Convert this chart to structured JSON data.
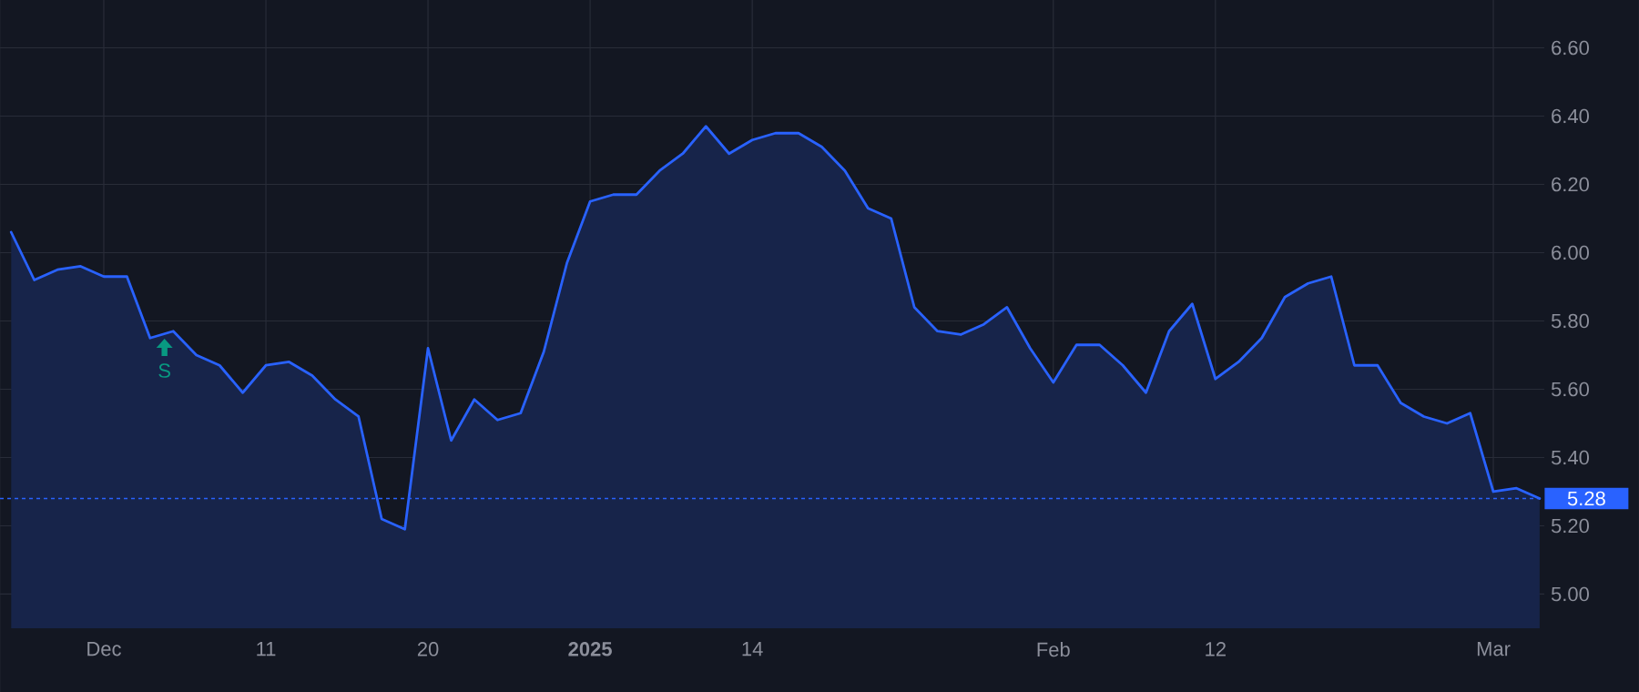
{
  "chart_data": {
    "type": "area",
    "categories": [
      null,
      null,
      null,
      null,
      "Dec",
      null,
      null,
      null,
      null,
      null,
      null,
      "11",
      null,
      null,
      null,
      null,
      null,
      null,
      "20",
      null,
      null,
      null,
      null,
      null,
      null,
      "**2025**",
      null,
      null,
      null,
      null,
      null,
      null,
      "14",
      null,
      null,
      null,
      null,
      null,
      null,
      null,
      null,
      null,
      null,
      null,
      null,
      "Feb",
      null,
      null,
      null,
      null,
      null,
      null,
      "12",
      null,
      null,
      null,
      null,
      null,
      null,
      null,
      null,
      null,
      null,
      null,
      "Mar",
      null,
      null
    ],
    "values": [
      6.06,
      5.92,
      5.95,
      5.96,
      5.93,
      5.93,
      5.75,
      5.77,
      5.7,
      5.67,
      5.59,
      5.67,
      5.68,
      5.64,
      5.57,
      5.52,
      5.22,
      5.19,
      5.72,
      5.45,
      5.57,
      5.51,
      5.53,
      5.71,
      5.97,
      6.15,
      6.17,
      6.17,
      6.24,
      6.29,
      6.37,
      6.29,
      6.33,
      6.35,
      6.35,
      6.31,
      6.24,
      6.13,
      6.1,
      5.84,
      5.77,
      5.76,
      5.79,
      5.84,
      5.72,
      5.62,
      5.73,
      5.73,
      5.67,
      5.59,
      5.77,
      5.85,
      5.63,
      5.68,
      5.75,
      5.87,
      5.91,
      5.93,
      5.67,
      5.67,
      5.56,
      5.52,
      5.5,
      5.53,
      5.3,
      5.31,
      5.28
    ],
    "color": "#2962ff",
    "ylim": [
      4.9,
      6.74
    ],
    "yticks": [
      {
        "value": 5.0,
        "label": "5.00"
      },
      {
        "value": 5.2,
        "label": "5.20"
      },
      {
        "value": 5.4,
        "label": "5.40"
      },
      {
        "value": 5.6,
        "label": "5.60"
      },
      {
        "value": 5.8,
        "label": "5.80"
      },
      {
        "value": 6.0,
        "label": "6.00"
      },
      {
        "value": 6.2,
        "label": "6.20"
      },
      {
        "value": 6.4,
        "label": "6.40"
      },
      {
        "value": 6.6,
        "label": "6.60"
      }
    ],
    "grid": true,
    "ref_lines": [
      {
        "axis": "y",
        "value": 5.28,
        "label": "5.28",
        "color": "#2962ff",
        "line_style": "dashed"
      }
    ],
    "annotations": [
      "S"
    ]
  }
}
